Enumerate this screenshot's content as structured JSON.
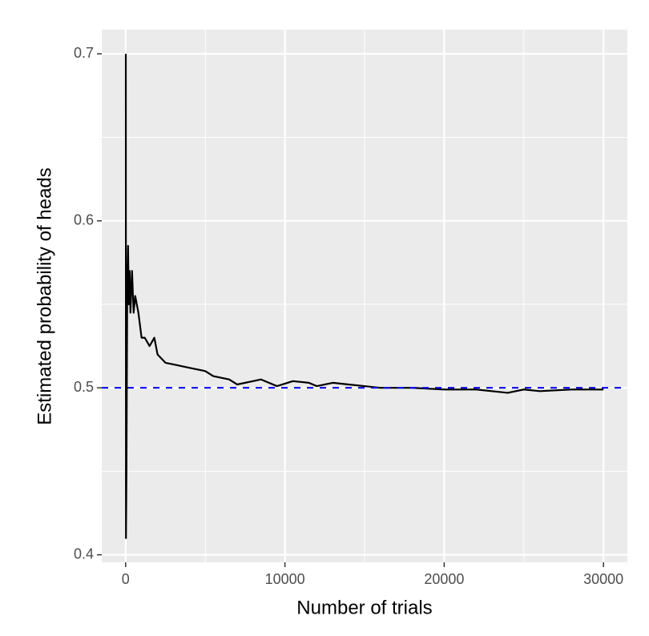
{
  "chart_data": {
    "type": "line",
    "xlabel": "Number of trials",
    "ylabel": "Estimated probability of heads",
    "x": [
      10,
      20,
      50,
      100,
      150,
      200,
      250,
      300,
      400,
      500,
      600,
      800,
      1000,
      1200,
      1500,
      1800,
      2000,
      2500,
      3000,
      4000,
      5000,
      5500,
      6500,
      7000,
      8000,
      8500,
      9500,
      10500,
      11500,
      12000,
      13000,
      14000,
      15000,
      16000,
      18000,
      20000,
      22000,
      24000,
      25000,
      26000,
      28000,
      30000
    ],
    "values": [
      0.7,
      0.41,
      0.45,
      0.56,
      0.585,
      0.55,
      0.57,
      0.545,
      0.57,
      0.545,
      0.555,
      0.545,
      0.53,
      0.53,
      0.525,
      0.53,
      0.52,
      0.515,
      0.514,
      0.512,
      0.51,
      0.507,
      0.505,
      0.502,
      0.504,
      0.505,
      0.501,
      0.504,
      0.503,
      0.501,
      0.503,
      0.502,
      0.501,
      0.5,
      0.5,
      0.499,
      0.499,
      0.497,
      0.499,
      0.498,
      0.499,
      0.499
    ],
    "color": "#000000",
    "hline": 0.5,
    "hline_color": "#0000ff",
    "xlim": [
      -1500,
      31500
    ],
    "xticks": [
      0,
      10000,
      20000,
      30000
    ],
    "minor_xticks": [
      5000,
      15000,
      25000
    ],
    "ylim": [
      0.3955,
      0.7145
    ],
    "yticks": [
      0.4,
      0.5,
      0.6,
      0.7
    ],
    "minor_yticks": [
      0.45,
      0.55,
      0.65
    ],
    "grid": true
  }
}
